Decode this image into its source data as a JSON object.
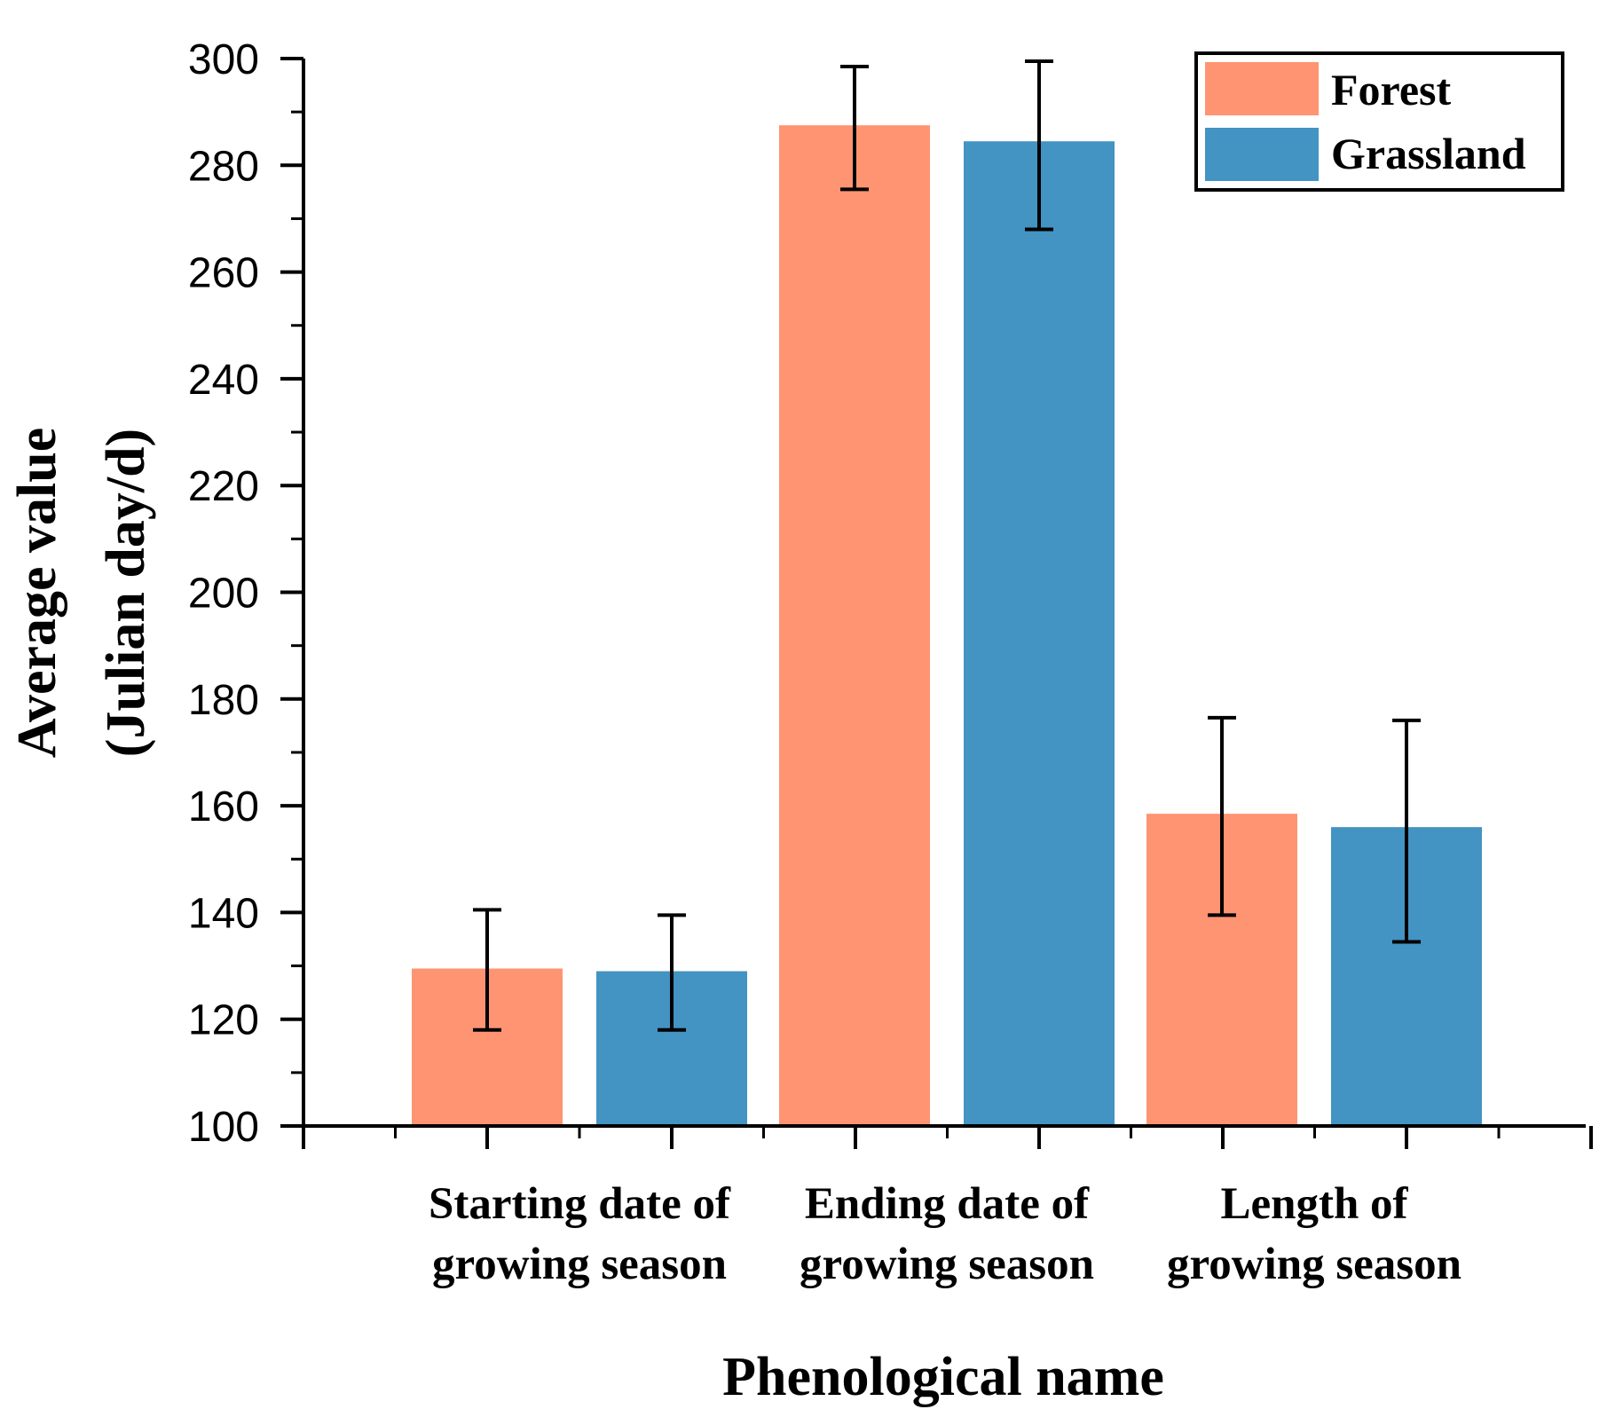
{
  "chart_data": {
    "type": "bar",
    "title": "",
    "xlabel": "Phenological name",
    "ylabel_lines": [
      "Average value",
      "(Julian day/d)"
    ],
    "ylim": [
      100,
      300
    ],
    "yticks": [
      100,
      120,
      140,
      160,
      180,
      200,
      220,
      240,
      260,
      280,
      300
    ],
    "categories": [
      [
        "Starting date of",
        "growing season"
      ],
      [
        "Ending date of",
        "growing season"
      ],
      [
        "Length of",
        "growing season"
      ]
    ],
    "series": [
      {
        "name": "Forest",
        "color": "#FF9472",
        "values": [
          129.5,
          287.5,
          158.5
        ],
        "err_low": [
          118,
          275.5,
          139.5
        ],
        "err_high": [
          140.5,
          298.5,
          176.5
        ]
      },
      {
        "name": "Grassland",
        "color": "#4393C3",
        "values": [
          129,
          284.5,
          156
        ],
        "err_low": [
          118,
          268,
          134.5
        ],
        "err_high": [
          139.5,
          299.5,
          176
        ]
      }
    ],
    "legend_position": "top-right",
    "grid": false
  }
}
